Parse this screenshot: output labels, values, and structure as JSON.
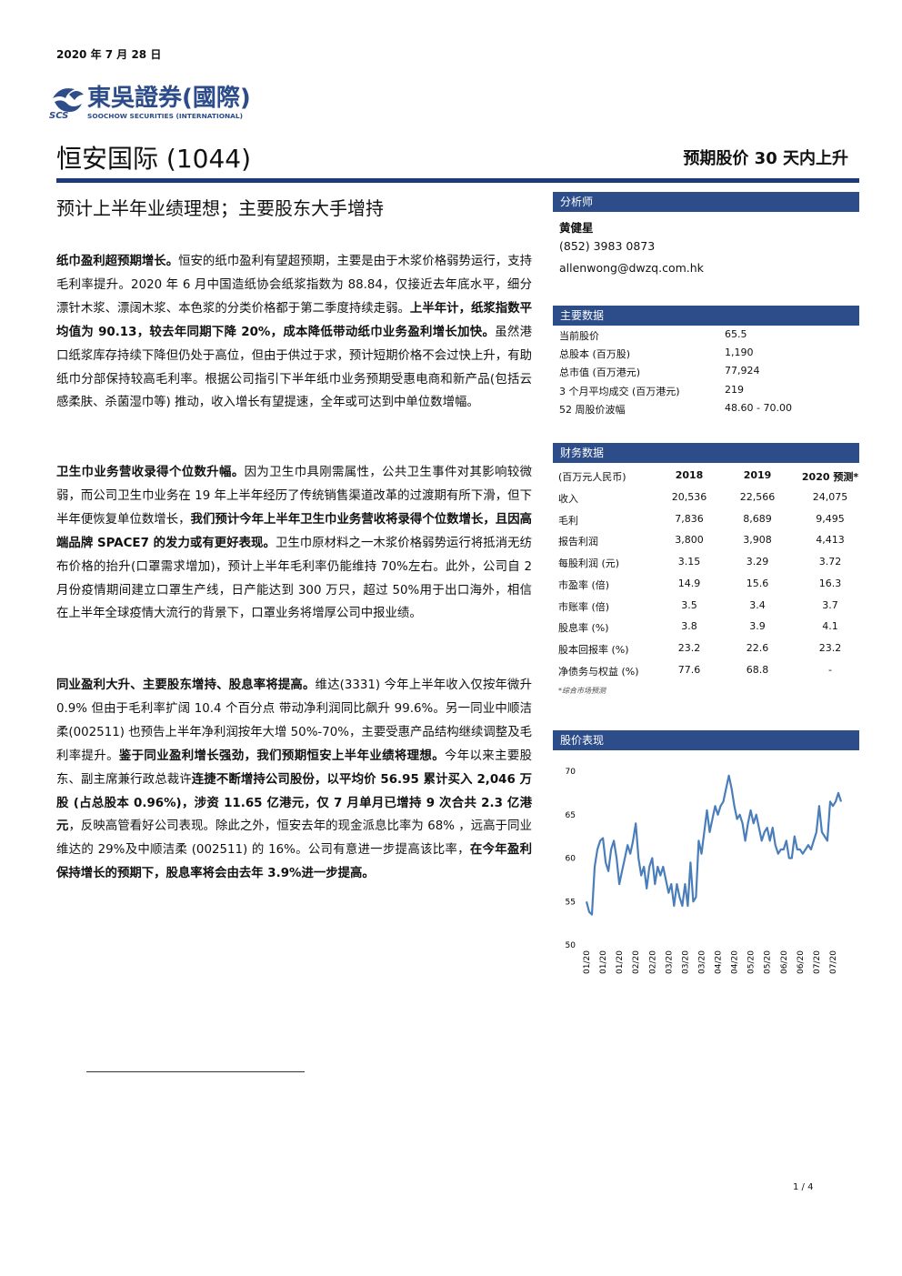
{
  "header": {
    "date": "2020 年 7 月 28 日",
    "logo_abbr": "SCS",
    "logo_cn": "東吳證券(國際)",
    "logo_en": "SOOCHOW SECURITIES (INTERNATIONAL)",
    "company": "恒安国际 (1044)",
    "rating": "预期股价 30 天内上升"
  },
  "headline": "预计上半年业绩理想；主要股东大手增持",
  "body": [
    {
      "segments": [
        {
          "text": "纸巾盈利超预期增长。",
          "bold": true
        },
        {
          "text": "恒安的纸巾盈利有望超预期，主要是由于木浆价格弱势运行，支持毛利率提升。2020 年 6 月中国造纸协会纸浆指数为 88.84，仅接近去年底水平，细分漂针木浆、漂阔木浆、本色浆的分类价格都于第二季度持续走弱。",
          "bold": false
        },
        {
          "text": "上半年计，纸浆指数平均值为 90.13，较去年同期下降 20%，成本降低带动纸巾业务盈利增长加快。",
          "bold": true
        },
        {
          "text": "虽然港口纸浆库存持续下降但仍处于高位，但由于供过于求，预计短期价格不会过快上升，有助纸巾分部保持较高毛利率。根据公司指引下半年纸巾业务预期受惠电商和新产品(包括云感柔肤、杀菌湿巾等) 推动，收入增长有望提速，全年或可达到中单位数增幅。",
          "bold": false
        }
      ]
    },
    {
      "segments": [
        {
          "text": "卫生巾业务营收录得个位数升幅。",
          "bold": true
        },
        {
          "text": "因为卫生巾具刚需属性，公共卫生事件对其影响较微弱，而公司卫生巾业务在 19 年上半年经历了传统销售渠道改革的过渡期有所下滑，但下半年便恢复单位数增长，",
          "bold": false
        },
        {
          "text": "我们预计今年上半年卫生巾业务营收将录得个位数增长，且因高端品牌 SPACE7 的发力或有更好表现。",
          "bold": true
        },
        {
          "text": "卫生巾原材料之一木浆价格弱势运行将抵消无纺布价格的抬升(口罩需求增加)，预计上半年毛利率仍能维持 70%左右。此外，公司自 2 月份疫情期间建立口罩生产线，日产能达到 300 万只，超过 50%用于出口海外，相信在上半年全球疫情大流行的背景下，口罩业务将增厚公司中报业绩。",
          "bold": false
        }
      ]
    },
    {
      "segments": [
        {
          "text": "同业盈利大升、主要股东增持、股息率将提高。",
          "bold": true
        },
        {
          "text": "维达(3331) 今年上半年收入仅按年微升 0.9% 但由于毛利率扩阔 10.4 个百分点 带动净利润同比飙升 99.6%。另一同业中顺洁柔(002511) 也预告上半年净利润按年大增 50%-70%，主要受惠产品结构继续调整及毛利率提升。",
          "bold": false
        },
        {
          "text": "鉴于同业盈利增长强劲，我们预期恒安上半年业绩将理想。",
          "bold": true
        },
        {
          "text": "今年以来主要股东、副主席兼行政总裁许",
          "bold": false
        },
        {
          "text": "连捷不断增持公司股份，以平均价 56.95 累计买入 2,046 万股 (占总股本 0.96%)，涉资 11.65 亿港元，仅 7 月单月已增持 9 次合共 2.3 亿港元",
          "bold": true
        },
        {
          "text": "，反映高管看好公司表现。除此之外，恒安去年的现金派息比率为 68% ，远高于同业维达的 29%及中顺洁柔 (002511) 的 16%。公司有意进一步提高该比率，",
          "bold": false
        },
        {
          "text": "在今年盈利保持增长的预期下，股息率将会由去年 3.9%进一步提高。",
          "bold": true
        }
      ]
    }
  ],
  "analyst": {
    "title": "分析师",
    "name": "黄健星",
    "phone": "(852) 3983 0873",
    "email": "allenwong@dwzq.com.hk"
  },
  "key_data": {
    "title": "主要数据",
    "rows": [
      [
        "当前股价",
        "65.5"
      ],
      [
        "总股本 (百万股)",
        "1,190"
      ],
      [
        "总市值 (百万港元)",
        "77,924"
      ],
      [
        "3 个月平均成交 (百万港元)",
        "219"
      ],
      [
        "52 周股价波幅",
        "48.60 - 70.00"
      ]
    ]
  },
  "financials": {
    "title": "财务数据",
    "header": [
      "(百万元人民币)",
      "2018",
      "2019",
      "2020 预测*"
    ],
    "rows": [
      [
        "收入",
        "20,536",
        "22,566",
        "24,075"
      ],
      [
        "毛利",
        "7,836",
        "8,689",
        "9,495"
      ],
      [
        "报告利润",
        "3,800",
        "3,908",
        "4,413"
      ],
      [
        "每股利润 (元)",
        "3.15",
        "3.29",
        "3.72"
      ],
      [
        "市盈率 (倍)",
        "14.9",
        "15.6",
        "16.3"
      ],
      [
        "市账率 (倍)",
        "3.5",
        "3.4",
        "3.7"
      ],
      [
        "股息率 (%)",
        "3.8",
        "3.9",
        "4.1"
      ],
      [
        "股本回报率 (%)",
        "23.2",
        "22.6",
        "23.2"
      ],
      [
        "净债务与权益 (%)",
        "77.6",
        "68.8",
        "-"
      ]
    ],
    "note": "*综合市场预测"
  },
  "chart_data": {
    "type": "line",
    "title": "股价表现",
    "categories": [
      "01/20",
      null,
      null,
      null,
      null,
      null,
      "01/20",
      null,
      null,
      null,
      null,
      null,
      "01/20",
      null,
      null,
      null,
      null,
      null,
      "02/20",
      null,
      null,
      null,
      null,
      null,
      "02/20",
      null,
      null,
      null,
      null,
      null,
      "03/20",
      null,
      null,
      null,
      null,
      null,
      "03/20",
      null,
      null,
      null,
      null,
      null,
      "03/20",
      null,
      null,
      null,
      null,
      null,
      "04/20",
      null,
      null,
      null,
      null,
      null,
      "04/20",
      null,
      null,
      null,
      null,
      null,
      "05/20",
      null,
      null,
      null,
      null,
      null,
      "05/20",
      null,
      null,
      null,
      null,
      null,
      "06/20",
      null,
      null,
      null,
      null,
      null,
      "06/20",
      null,
      null,
      null,
      null,
      null,
      "07/20",
      null,
      null,
      null,
      null,
      null,
      "07/20",
      null,
      null,
      null
    ],
    "values": [
      55,
      53.8,
      53.5,
      59,
      61,
      62,
      62.3,
      59.5,
      58.5,
      61,
      62,
      60,
      57,
      58.5,
      60,
      61.5,
      60.5,
      62,
      64,
      60,
      58,
      59,
      56.5,
      59,
      60,
      57,
      59,
      58,
      59,
      57.5,
      56,
      57,
      54.5,
      57,
      55.5,
      54.5,
      57,
      54.5,
      59.5,
      55,
      55.5,
      62,
      60.5,
      63,
      65.5,
      63,
      64.5,
      66,
      65,
      66,
      66.5,
      68,
      69.5,
      68,
      66,
      64.5,
      65,
      64,
      62,
      64,
      65.5,
      64,
      65,
      63.5,
      62,
      63,
      63.5,
      62,
      63.5,
      61.5,
      60.5,
      61,
      61,
      62,
      60,
      60,
      62.5,
      61,
      61,
      60.5,
      61,
      61.5,
      61,
      62,
      63,
      66,
      63,
      62.5,
      62,
      66.5,
      66,
      66.5,
      67.5,
      66.5
    ],
    "color": "#4a7ebb",
    "ylim": [
      50,
      70
    ],
    "yticks": [
      50,
      55,
      60,
      65,
      70
    ]
  },
  "footer": {
    "page": "1 / 4"
  }
}
